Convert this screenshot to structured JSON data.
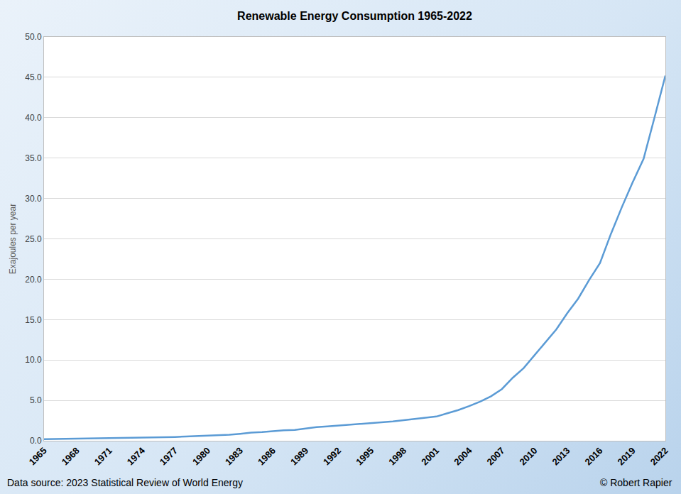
{
  "chart_data": {
    "type": "line",
    "title": "Renewable Energy Consumption 1965-2022",
    "y_label": "Exajoules per year",
    "annotations": [
      "Data source: 2023 Statistical Review of World Energy",
      "© Robert Rapier"
    ],
    "x": [
      1965,
      1966,
      1967,
      1968,
      1969,
      1970,
      1971,
      1972,
      1973,
      1974,
      1975,
      1976,
      1977,
      1978,
      1979,
      1980,
      1981,
      1982,
      1983,
      1984,
      1985,
      1986,
      1987,
      1988,
      1989,
      1990,
      1991,
      1992,
      1993,
      1994,
      1995,
      1996,
      1997,
      1998,
      1999,
      2000,
      2001,
      2002,
      2003,
      2004,
      2005,
      2006,
      2007,
      2008,
      2009,
      2010,
      2011,
      2012,
      2013,
      2014,
      2015,
      2016,
      2017,
      2018,
      2019,
      2020,
      2021,
      2022
    ],
    "values": [
      0.2,
      0.22,
      0.23,
      0.24,
      0.27,
      0.3,
      0.32,
      0.35,
      0.37,
      0.4,
      0.41,
      0.43,
      0.47,
      0.52,
      0.57,
      0.62,
      0.67,
      0.75,
      0.86,
      1.0,
      1.07,
      1.2,
      1.3,
      1.35,
      1.5,
      1.7,
      1.78,
      1.88,
      1.97,
      2.06,
      2.15,
      2.25,
      2.4,
      2.55,
      2.68,
      2.85,
      3.0,
      3.4,
      3.8,
      4.3,
      4.85,
      5.5,
      6.4,
      7.8,
      9.0,
      10.6,
      12.2,
      13.8,
      15.8,
      17.6,
      19.9,
      22.0,
      25.6,
      28.9,
      32.0,
      34.9,
      40.0,
      45.2
    ],
    "color": "#5b9bd5",
    "xlim": [
      1965,
      2022
    ],
    "xticks": [
      1965,
      1968,
      1971,
      1974,
      1977,
      1980,
      1983,
      1986,
      1989,
      1992,
      1995,
      1998,
      2001,
      2004,
      2007,
      2010,
      2013,
      2016,
      2019,
      2022
    ],
    "ylim": [
      0,
      50
    ],
    "yticks": [
      {
        "value": 0,
        "label": "0.0"
      },
      {
        "value": 5,
        "label": "5.0"
      },
      {
        "value": 10,
        "label": "10.0"
      },
      {
        "value": 15,
        "label": "15.0"
      },
      {
        "value": 20,
        "label": "20.0"
      },
      {
        "value": 25,
        "label": "25.0"
      },
      {
        "value": 30,
        "label": "30.0"
      },
      {
        "value": 35,
        "label": "35.0"
      },
      {
        "value": 40,
        "label": "40.0"
      },
      {
        "value": 45,
        "label": "45.0"
      },
      {
        "value": 50,
        "label": "50.0"
      }
    ],
    "grid": true
  }
}
